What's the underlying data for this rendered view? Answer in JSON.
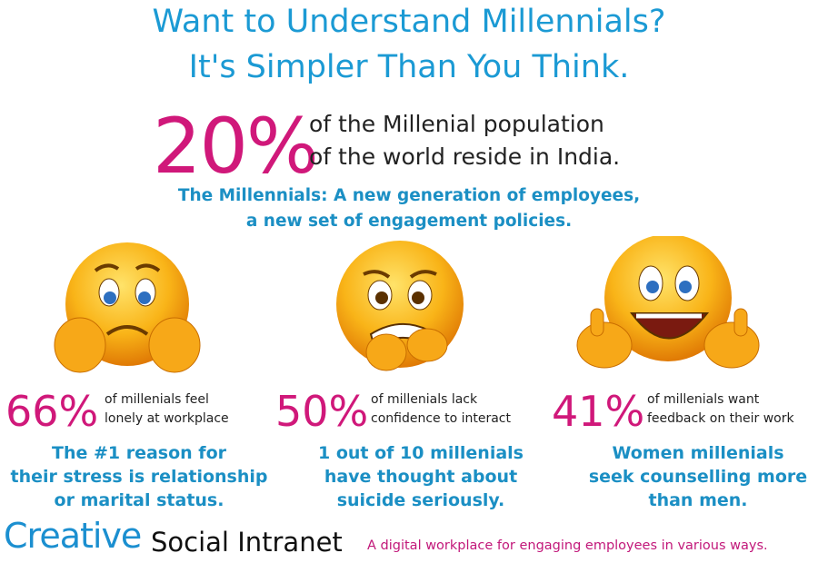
{
  "header": {
    "title_lines": [
      "Want to Understand Millennials?",
      "It's Simpler Than You Think."
    ]
  },
  "headline": {
    "stat": "20%",
    "text_lines": [
      "of the Millenial population",
      "of the world reside in India."
    ]
  },
  "subtitle_lines": [
    "The Millennials: A new generation of employees,",
    "a new set of engagement policies."
  ],
  "stats": [
    {
      "stat": "66%",
      "text_lines": [
        "of millenials feel",
        "lonely at workplace"
      ],
      "note_lines": [
        "The #1 reason for",
        "their stress is relationship",
        "or marital status."
      ]
    },
    {
      "stat": "50%",
      "text_lines": [
        "of millenials lack",
        "confidence to interact"
      ],
      "note_lines": [
        "1 out of 10 millenials",
        "have thought about",
        "suicide seriously."
      ]
    },
    {
      "stat": "41%",
      "text_lines": [
        "of millenials want",
        "feedback on their work"
      ],
      "note_lines": [
        "Women millenials",
        "seek counselling more",
        "than men."
      ]
    }
  ],
  "footer": {
    "logo": "Creative",
    "brand": "Social Intranet",
    "tagline": "A digital workplace for engaging employees in various ways."
  }
}
